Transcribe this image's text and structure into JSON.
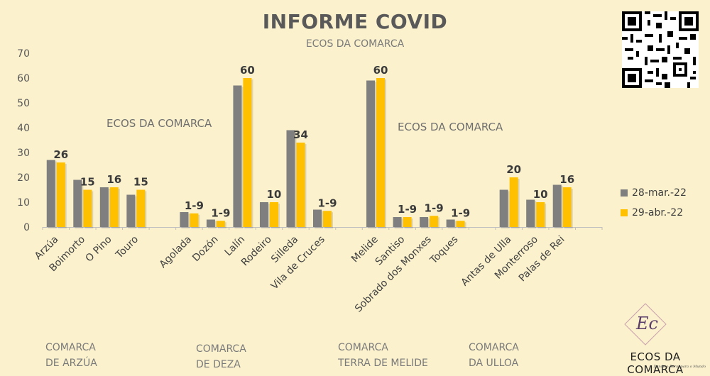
{
  "header": {
    "title": "INFORME COVID",
    "subtitle": "ECOS DA COMARCA"
  },
  "watermarks": [
    "ECOS DA COMARCA",
    "ECOS DA COMARCA"
  ],
  "legend": {
    "items": [
      {
        "label": "28-mar.-22",
        "color": "#7f7f7f"
      },
      {
        "label": "29-abr.-22",
        "color": "#ffc000"
      }
    ]
  },
  "groups": [
    {
      "line1": "COMARCA",
      "line2": "DE ARZÚA"
    },
    {
      "line1": "COMARCA",
      "line2": "DE DEZA"
    },
    {
      "line1": "COMARCA",
      "line2": "TERRA DE MELIDE"
    },
    {
      "line1": "COMARCA",
      "line2": "DA ULLOA"
    }
  ],
  "logo": {
    "initials": "Ec",
    "name": "ECOS DA COMARCA",
    "tagline": "Dende o Rural para o Mundo"
  },
  "chart_data": {
    "type": "bar",
    "title": "INFORME COVID",
    "subtitle": "ECOS DA COMARCA",
    "ylim": [
      0,
      70
    ],
    "yticks": [
      0,
      10,
      20,
      30,
      40,
      50,
      60,
      70
    ],
    "grid": false,
    "legend_position": "right",
    "categories": [
      "Arzúa",
      "Boimorto",
      "O Pino",
      "Touro",
      "",
      "Agolada",
      "Dozón",
      "Lalín",
      "Rodeiro",
      "Silleda",
      "Vila de Cruces",
      "",
      "Melide",
      "Santiso",
      "Sobrado dos Monxes",
      "Toques",
      "",
      "Antas de Ulla",
      "Monterroso",
      "Palas de Rei",
      ""
    ],
    "series": [
      {
        "name": "28-mar.-22",
        "color": "#7f7f7f",
        "values": [
          27,
          19,
          16,
          13,
          null,
          6,
          3,
          57,
          10,
          39,
          7,
          null,
          59,
          4,
          4,
          3,
          null,
          15,
          11,
          17,
          null
        ]
      },
      {
        "name": "29-abr.-22",
        "color": "#ffc000",
        "values": [
          26,
          15,
          16,
          15,
          null,
          5.5,
          2.5,
          60,
          10,
          34,
          6.5,
          null,
          60,
          4,
          4.5,
          2.5,
          null,
          20,
          10,
          16,
          null
        ]
      }
    ],
    "data_labels": [
      "26",
      "15",
      "16",
      "15",
      "",
      "1-9",
      "1-9",
      "60",
      "10",
      "34",
      "1-9",
      "",
      "60",
      "1-9",
      "1-9",
      "1-9",
      "",
      "20",
      "10",
      "16",
      ""
    ]
  }
}
